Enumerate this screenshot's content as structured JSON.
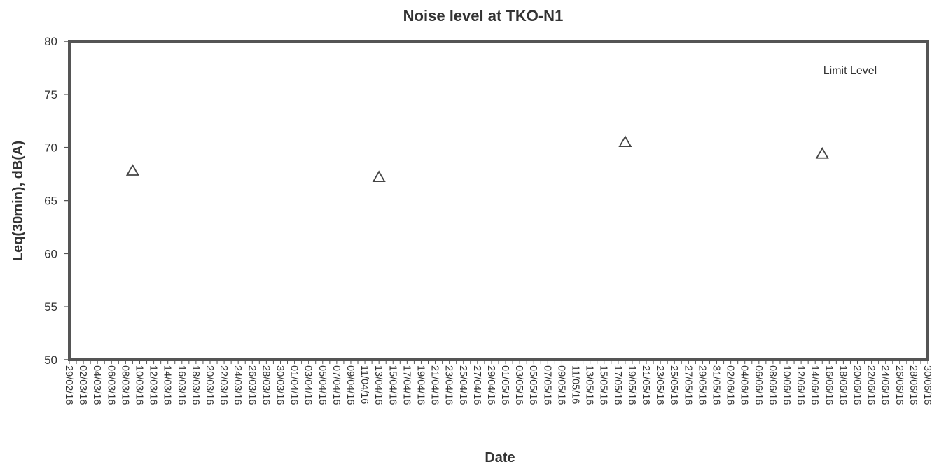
{
  "chart_data": {
    "type": "scatter",
    "title": "Noise level at TKO-N1",
    "xlabel": "Date",
    "ylabel": "Leq(30min), dB(A)",
    "ylim": [
      50,
      80
    ],
    "yticks": [
      50,
      55,
      60,
      65,
      70,
      75,
      80
    ],
    "x_range": [
      "29/02/16",
      "30/06/16"
    ],
    "xtick_labels": [
      "29/02/16",
      "02/03/16",
      "04/03/16",
      "06/03/16",
      "08/03/16",
      "10/03/16",
      "12/03/16",
      "14/03/16",
      "16/03/16",
      "18/03/16",
      "20/03/16",
      "22/03/16",
      "24/03/16",
      "26/03/16",
      "28/03/16",
      "30/03/16",
      "01/04/16",
      "03/04/16",
      "05/04/16",
      "07/04/16",
      "09/04/16",
      "11/04/16",
      "13/04/16",
      "15/04/16",
      "17/04/16",
      "19/04/16",
      "21/04/16",
      "23/04/16",
      "25/04/16",
      "27/04/16",
      "29/04/16",
      "01/05/16",
      "03/05/16",
      "05/05/16",
      "07/05/16",
      "09/05/16",
      "11/05/16",
      "13/05/16",
      "15/05/16",
      "17/05/16",
      "19/05/16",
      "21/05/16",
      "23/05/16",
      "25/05/16",
      "27/05/16",
      "29/05/16",
      "31/05/16",
      "02/06/16",
      "04/06/16",
      "06/06/16",
      "08/06/16",
      "10/06/16",
      "12/06/16",
      "14/06/16",
      "16/06/16",
      "18/06/16",
      "20/06/16",
      "22/06/16",
      "24/06/16",
      "26/06/16",
      "28/06/16",
      "30/06/16"
    ],
    "series": [
      {
        "marker": "triangle-open",
        "points": [
          {
            "x": "09/03/16",
            "y": 67.8
          },
          {
            "x": "13/04/16",
            "y": 67.2
          },
          {
            "x": "18/05/16",
            "y": 70.5
          },
          {
            "x": "15/06/16",
            "y": 69.4
          }
        ]
      }
    ],
    "legend": {
      "text": "Limit Level",
      "position": "top-right"
    },
    "grid": false
  }
}
